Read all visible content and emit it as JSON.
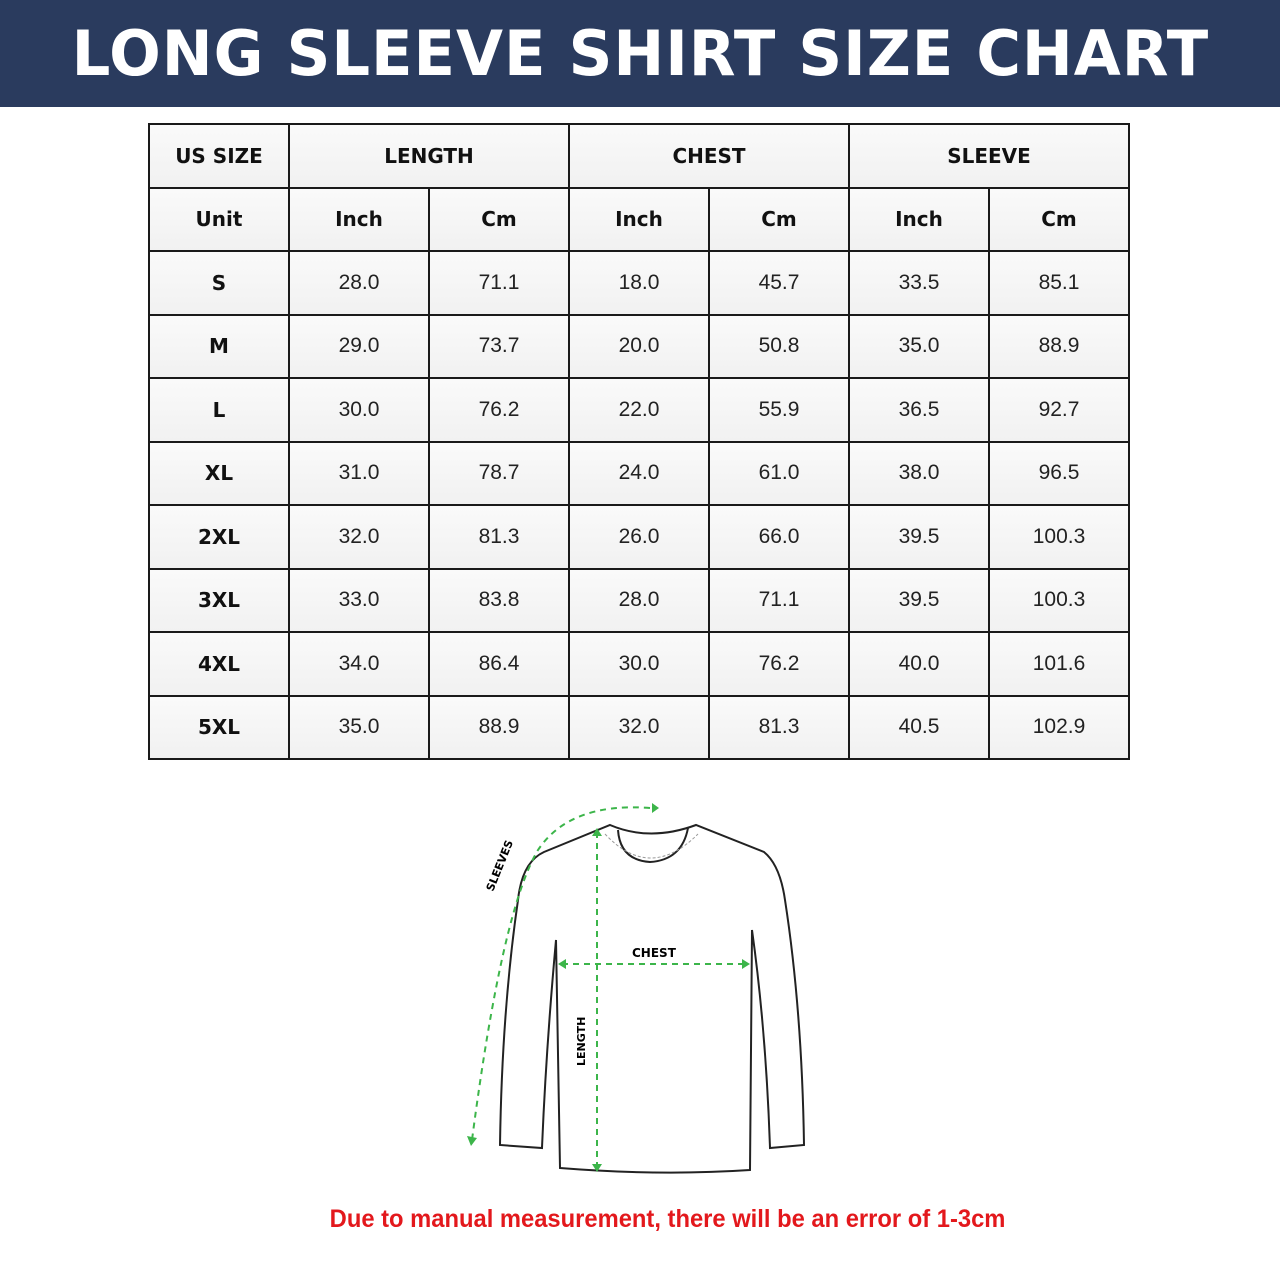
{
  "title": "LONG SLEEVE SHIRT SIZE CHART",
  "colors": {
    "banner": "#2a3b5e",
    "measure_lines": "#3cb54a",
    "note": "#e3181c"
  },
  "table": {
    "group_headers": [
      "US SIZE",
      "LENGTH",
      "CHEST",
      "SLEEVE"
    ],
    "unit_label": "Unit",
    "units": [
      "Inch",
      "Cm",
      "Inch",
      "Cm",
      "Inch",
      "Cm"
    ],
    "rows": [
      {
        "size": "S",
        "values": [
          "28.0",
          "71.1",
          "18.0",
          "45.7",
          "33.5",
          "85.1"
        ]
      },
      {
        "size": "M",
        "values": [
          "29.0",
          "73.7",
          "20.0",
          "50.8",
          "35.0",
          "88.9"
        ]
      },
      {
        "size": "L",
        "values": [
          "30.0",
          "76.2",
          "22.0",
          "55.9",
          "36.5",
          "92.7"
        ]
      },
      {
        "size": "XL",
        "values": [
          "31.0",
          "78.7",
          "24.0",
          "61.0",
          "38.0",
          "96.5"
        ]
      },
      {
        "size": "2XL",
        "values": [
          "32.0",
          "81.3",
          "26.0",
          "66.0",
          "39.5",
          "100.3"
        ]
      },
      {
        "size": "3XL",
        "values": [
          "33.0",
          "83.8",
          "28.0",
          "71.1",
          "39.5",
          "100.3"
        ]
      },
      {
        "size": "4XL",
        "values": [
          "34.0",
          "86.4",
          "30.0",
          "76.2",
          "40.0",
          "101.6"
        ]
      },
      {
        "size": "5XL",
        "values": [
          "35.0",
          "88.9",
          "32.0",
          "81.3",
          "40.5",
          "102.9"
        ]
      }
    ]
  },
  "diagram": {
    "sleeves_label": "SLEEVES",
    "chest_label": "CHEST",
    "length_label": "LENGTH"
  },
  "note": "Due to manual measurement, there will be an error of 1-3cm"
}
